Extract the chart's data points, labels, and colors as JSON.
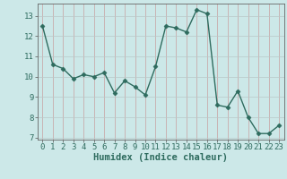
{
  "x": [
    0,
    1,
    2,
    3,
    4,
    5,
    6,
    7,
    8,
    9,
    10,
    11,
    12,
    13,
    14,
    15,
    16,
    17,
    18,
    19,
    20,
    21,
    22,
    23
  ],
  "y": [
    12.5,
    10.6,
    10.4,
    9.9,
    10.1,
    10.0,
    10.2,
    9.2,
    9.8,
    9.5,
    9.1,
    10.5,
    12.5,
    12.4,
    12.2,
    13.3,
    13.1,
    8.6,
    8.5,
    9.3,
    8.0,
    7.2,
    7.2,
    7.6
  ],
  "line_color": "#2e6b5e",
  "marker": "D",
  "marker_size": 2.5,
  "bg_color": "#cce8e8",
  "grid_color_v": "#c8a0a0",
  "grid_color_h": "#b8c8c8",
  "ylim": [
    6.9,
    13.6
  ],
  "xlim": [
    -0.5,
    23.5
  ],
  "yticks": [
    7,
    8,
    9,
    10,
    11,
    12,
    13
  ],
  "xticks": [
    0,
    1,
    2,
    3,
    4,
    5,
    6,
    7,
    8,
    9,
    10,
    11,
    12,
    13,
    14,
    15,
    16,
    17,
    18,
    19,
    20,
    21,
    22,
    23
  ],
  "xlabel": "Humidex (Indice chaleur)",
  "tick_fontsize": 6.5,
  "label_fontsize": 7.5,
  "line_width": 1.0
}
